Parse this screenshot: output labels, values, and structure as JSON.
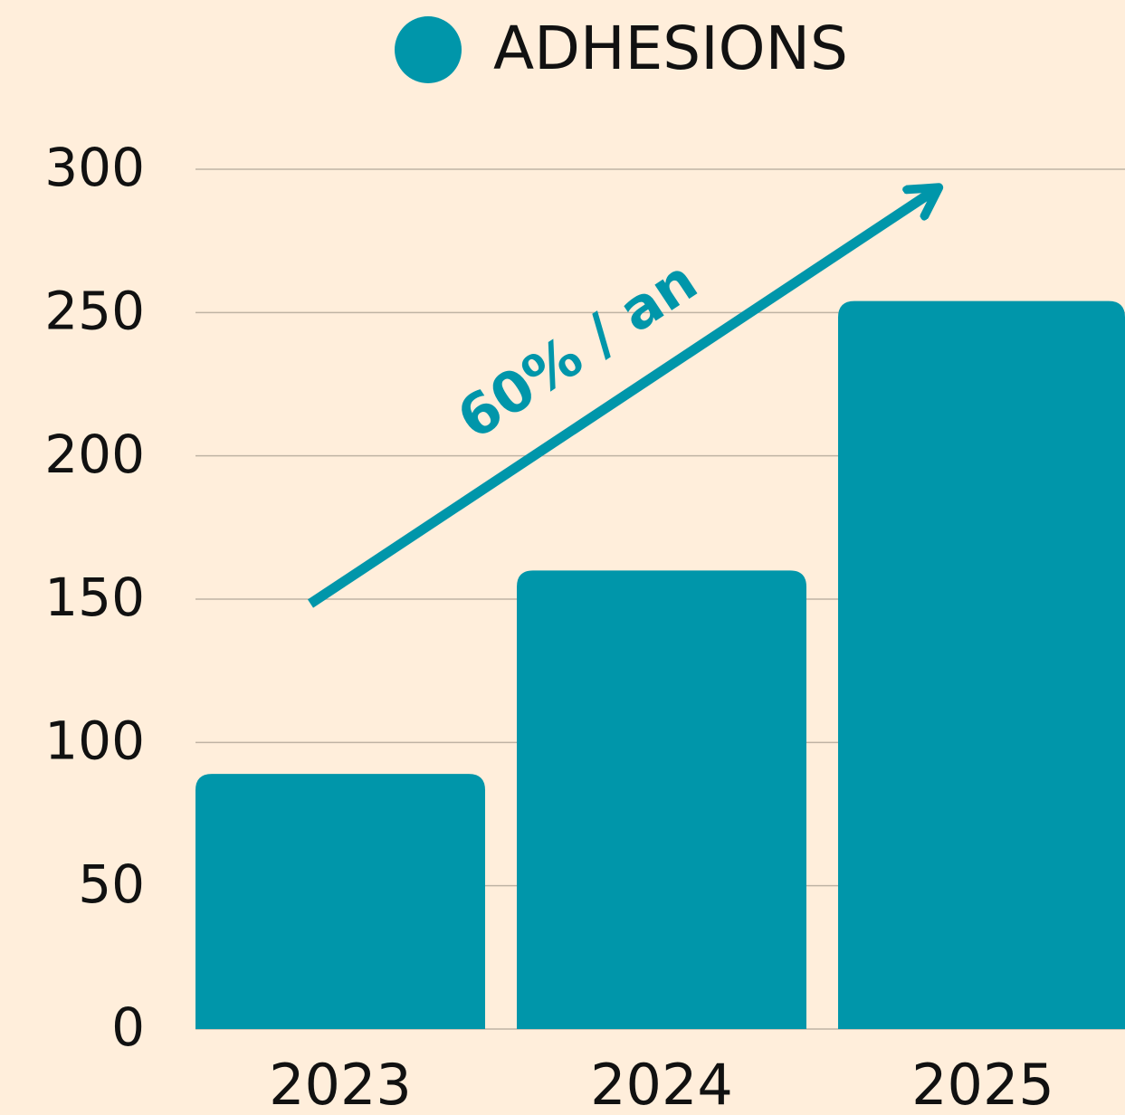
{
  "chart_data": {
    "type": "bar",
    "categories": [
      "2023",
      "2024",
      "2025"
    ],
    "series": [
      {
        "name": "ADHESIONS",
        "color": "#0096aa",
        "values": [
          89,
          160,
          254
        ]
      }
    ],
    "ylim": [
      0,
      300
    ],
    "yticks": [
      0,
      50,
      100,
      150,
      200,
      250,
      300
    ],
    "grid": true,
    "annotation": "60% / an"
  }
}
